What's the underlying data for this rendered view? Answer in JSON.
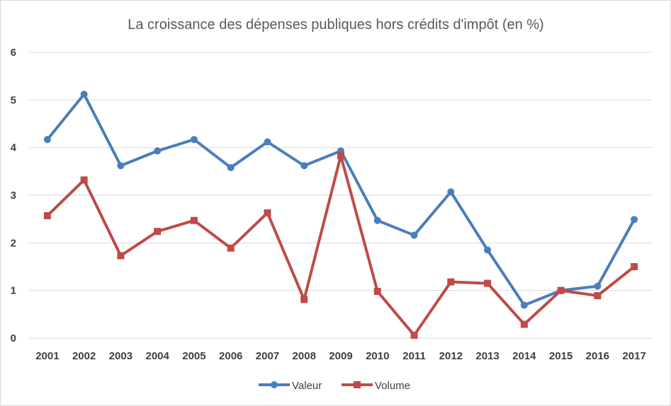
{
  "chart_data": {
    "type": "line",
    "title": "La croissance des dépenses publiques hors crédits d'impôt (en %)",
    "xlabel": "",
    "ylabel": "",
    "categories": [
      "2001",
      "2002",
      "2003",
      "2004",
      "2005",
      "2006",
      "2007",
      "2008",
      "2009",
      "2010",
      "2011",
      "2012",
      "2013",
      "2014",
      "2015",
      "2016",
      "2017"
    ],
    "ylim": [
      0,
      6
    ],
    "yticks": [
      "0",
      "1",
      "2",
      "3",
      "4",
      "5",
      "6"
    ],
    "grid": true,
    "legend_position": "bottom",
    "series": [
      {
        "name": "Valeur",
        "color": "#4a7ebb",
        "marker": "circle",
        "values": [
          4.17,
          5.12,
          3.62,
          3.93,
          4.17,
          3.58,
          4.12,
          3.62,
          3.93,
          2.47,
          2.16,
          3.07,
          1.85,
          0.69,
          1.0,
          1.09,
          2.49
        ]
      },
      {
        "name": "Volume",
        "color": "#be4b48",
        "marker": "square",
        "values": [
          2.57,
          3.32,
          1.73,
          2.24,
          2.47,
          1.89,
          2.63,
          0.81,
          3.83,
          0.98,
          0.06,
          1.18,
          1.15,
          0.29,
          1.0,
          0.89,
          1.5
        ]
      }
    ]
  }
}
